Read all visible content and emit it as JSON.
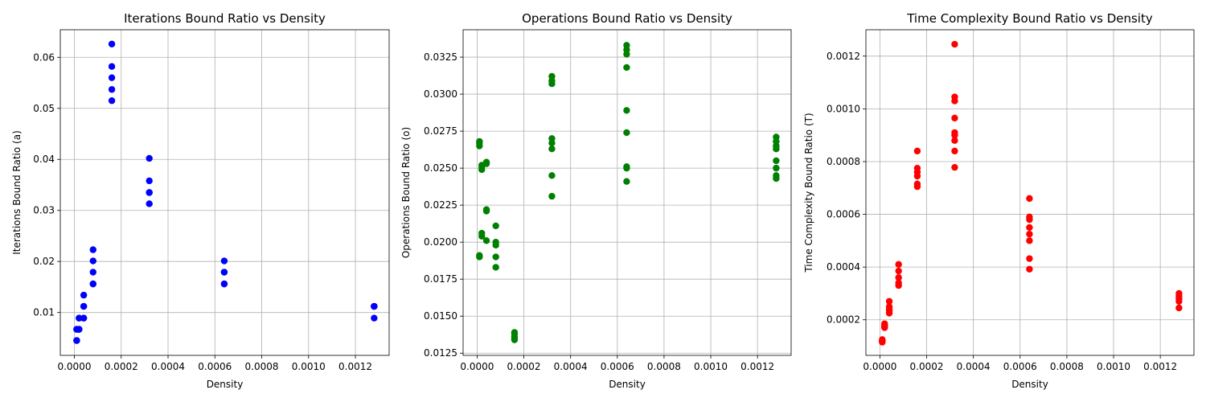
{
  "chart_data": [
    {
      "type": "scatter",
      "title": "Iterations Bound Ratio vs Density",
      "xlabel": "Density",
      "ylabel": "Iterations Bound Ratio (a)",
      "color": "#0000ff",
      "grid": true,
      "xlim": [
        -6e-05,
        0.001344
      ],
      "ylim": [
        0.0016,
        0.0654
      ],
      "xticks": [
        0.0,
        0.0002,
        0.0004,
        0.0006,
        0.0008,
        0.001,
        0.0012
      ],
      "xtick_labels": [
        "0.0000",
        "0.0002",
        "0.0004",
        "0.0006",
        "0.0008",
        "0.0010",
        "0.0012"
      ],
      "yticks": [
        0.01,
        0.02,
        0.03,
        0.04,
        0.05,
        0.06
      ],
      "ytick_labels": [
        "0.01",
        "0.02",
        "0.03",
        "0.04",
        "0.05",
        "0.06"
      ],
      "points": [
        [
          1e-05,
          0.0045
        ],
        [
          1e-05,
          0.0067
        ],
        [
          1e-05,
          0.0045
        ],
        [
          1e-05,
          0.0067
        ],
        [
          1e-05,
          0.0045
        ],
        [
          2e-05,
          0.0067
        ],
        [
          2e-05,
          0.0089
        ],
        [
          2e-05,
          0.0067
        ],
        [
          2e-05,
          0.0089
        ],
        [
          2e-05,
          0.0067
        ],
        [
          4e-05,
          0.0089
        ],
        [
          4e-05,
          0.0112
        ],
        [
          4e-05,
          0.0134
        ],
        [
          4e-05,
          0.0112
        ],
        [
          4e-05,
          0.0089
        ],
        [
          8e-05,
          0.0156
        ],
        [
          8e-05,
          0.0179
        ],
        [
          8e-05,
          0.0201
        ],
        [
          8e-05,
          0.0223
        ],
        [
          8e-05,
          0.0156
        ],
        [
          0.00016,
          0.0515
        ],
        [
          0.00016,
          0.0537
        ],
        [
          0.00016,
          0.056
        ],
        [
          0.00016,
          0.0582
        ],
        [
          0.00016,
          0.0626
        ],
        [
          0.00032,
          0.0313
        ],
        [
          0.00032,
          0.0335
        ],
        [
          0.00032,
          0.0358
        ],
        [
          0.00032,
          0.0402
        ],
        [
          0.00032,
          0.0335
        ],
        [
          0.00064,
          0.0156
        ],
        [
          0.00064,
          0.0179
        ],
        [
          0.00064,
          0.0201
        ],
        [
          0.00064,
          0.0156
        ],
        [
          0.00064,
          0.0179
        ],
        [
          0.00128,
          0.0089
        ],
        [
          0.00128,
          0.0112
        ],
        [
          0.00128,
          0.0112
        ],
        [
          0.00128,
          0.0112
        ],
        [
          0.00128,
          0.0112
        ]
      ]
    },
    {
      "type": "scatter",
      "title": "Operations Bound Ratio vs Density",
      "xlabel": "Density",
      "ylabel": "Operations Bound Ratio (o)",
      "color": "#008000",
      "grid": true,
      "xlim": [
        -6e-05,
        0.001344
      ],
      "ylim": [
        0.01235,
        0.03435
      ],
      "xticks": [
        0.0,
        0.0002,
        0.0004,
        0.0006,
        0.0008,
        0.001,
        0.0012
      ],
      "xtick_labels": [
        "0.0000",
        "0.0002",
        "0.0004",
        "0.0006",
        "0.0008",
        "0.0010",
        "0.0012"
      ],
      "yticks": [
        0.0125,
        0.015,
        0.0175,
        0.02,
        0.0225,
        0.025,
        0.0275,
        0.03,
        0.0325
      ],
      "ytick_labels": [
        "0.0125",
        "0.0150",
        "0.0175",
        "0.0200",
        "0.0225",
        "0.0250",
        "0.0275",
        "0.0300",
        "0.0325"
      ],
      "points": [
        [
          1e-05,
          0.019
        ],
        [
          1e-05,
          0.0191
        ],
        [
          1e-05,
          0.0265
        ],
        [
          1e-05,
          0.0267
        ],
        [
          1e-05,
          0.0268
        ],
        [
          2e-05,
          0.0204
        ],
        [
          2e-05,
          0.0206
        ],
        [
          2e-05,
          0.0249
        ],
        [
          2e-05,
          0.0251
        ],
        [
          2e-05,
          0.0252
        ],
        [
          4e-05,
          0.0201
        ],
        [
          4e-05,
          0.0221
        ],
        [
          4e-05,
          0.0222
        ],
        [
          4e-05,
          0.0253
        ],
        [
          4e-05,
          0.0254
        ],
        [
          8e-05,
          0.0183
        ],
        [
          8e-05,
          0.019
        ],
        [
          8e-05,
          0.0198
        ],
        [
          8e-05,
          0.02
        ],
        [
          8e-05,
          0.0211
        ],
        [
          0.00016,
          0.0134
        ],
        [
          0.00016,
          0.0135
        ],
        [
          0.00016,
          0.0136
        ],
        [
          0.00016,
          0.0138
        ],
        [
          0.00016,
          0.0139
        ],
        [
          0.00032,
          0.0231
        ],
        [
          0.00032,
          0.0245
        ],
        [
          0.00032,
          0.0263
        ],
        [
          0.00032,
          0.0267
        ],
        [
          0.00032,
          0.027
        ],
        [
          0.00032,
          0.0307
        ],
        [
          0.00032,
          0.0309
        ],
        [
          0.00032,
          0.0312
        ],
        [
          0.00064,
          0.0241
        ],
        [
          0.00064,
          0.025
        ],
        [
          0.00064,
          0.0251
        ],
        [
          0.00064,
          0.0274
        ],
        [
          0.00064,
          0.0289
        ],
        [
          0.00064,
          0.0318
        ],
        [
          0.00064,
          0.0327
        ],
        [
          0.00064,
          0.033
        ],
        [
          0.00064,
          0.0333
        ],
        [
          0.00128,
          0.0243
        ],
        [
          0.00128,
          0.0245
        ],
        [
          0.00128,
          0.025
        ],
        [
          0.00128,
          0.0255
        ],
        [
          0.00128,
          0.0263
        ],
        [
          0.00128,
          0.0265
        ],
        [
          0.00128,
          0.0268
        ],
        [
          0.00128,
          0.0271
        ]
      ]
    },
    {
      "type": "scatter",
      "title": "Time Complexity Bound Ratio vs Density",
      "xlabel": "Density",
      "ylabel": "Time Complexity Bound Ratio (T)",
      "color": "#ff0000",
      "grid": true,
      "xlim": [
        -6e-05,
        0.001344
      ],
      "ylim": [
        6.5e-05,
        0.0013
      ],
      "xticks": [
        0.0,
        0.0002,
        0.0004,
        0.0006,
        0.0008,
        0.001,
        0.0012
      ],
      "xtick_labels": [
        "0.0000",
        "0.0002",
        "0.0004",
        "0.0006",
        "0.0008",
        "0.0010",
        "0.0012"
      ],
      "yticks": [
        0.0002,
        0.0004,
        0.0006,
        0.0008,
        0.001,
        0.0012
      ],
      "ytick_labels": [
        "0.0002",
        "0.0004",
        "0.0006",
        "0.0008",
        "0.0010",
        "0.0012"
      ],
      "points": [
        [
          1e-05,
          0.000115
        ],
        [
          1e-05,
          0.00012
        ],
        [
          1e-05,
          0.000125
        ],
        [
          1e-05,
          0.000118
        ],
        [
          1e-05,
          0.000122
        ],
        [
          2e-05,
          0.00017
        ],
        [
          2e-05,
          0.000175
        ],
        [
          2e-05,
          0.00018
        ],
        [
          2e-05,
          0.000185
        ],
        [
          2e-05,
          0.000172
        ],
        [
          4e-05,
          0.000225
        ],
        [
          4e-05,
          0.000235
        ],
        [
          4e-05,
          0.00025
        ],
        [
          4e-05,
          0.00027
        ],
        [
          4e-05,
          0.00024
        ],
        [
          8e-05,
          0.00033
        ],
        [
          8e-05,
          0.00034
        ],
        [
          8e-05,
          0.00036
        ],
        [
          8e-05,
          0.000385
        ],
        [
          8e-05,
          0.00041
        ],
        [
          0.00016,
          0.000705
        ],
        [
          0.00016,
          0.000715
        ],
        [
          0.00016,
          0.000745
        ],
        [
          0.00016,
          0.00076
        ],
        [
          0.00016,
          0.000775
        ],
        [
          0.00016,
          0.00084
        ],
        [
          0.00032,
          0.000778
        ],
        [
          0.00032,
          0.00084
        ],
        [
          0.00032,
          0.00088
        ],
        [
          0.00032,
          0.0009
        ],
        [
          0.00032,
          0.00091
        ],
        [
          0.00032,
          0.000965
        ],
        [
          0.00032,
          0.00103
        ],
        [
          0.00032,
          0.001045
        ],
        [
          0.00032,
          0.001245
        ],
        [
          0.00064,
          0.000392
        ],
        [
          0.00064,
          0.000432
        ],
        [
          0.00064,
          0.0005
        ],
        [
          0.00064,
          0.000525
        ],
        [
          0.00064,
          0.00055
        ],
        [
          0.00064,
          0.00058
        ],
        [
          0.00064,
          0.00059
        ],
        [
          0.00064,
          0.00066
        ],
        [
          0.00128,
          0.000245
        ],
        [
          0.00128,
          0.00027
        ],
        [
          0.00128,
          0.00028
        ],
        [
          0.00128,
          0.00029
        ],
        [
          0.00128,
          0.0003
        ]
      ]
    }
  ]
}
